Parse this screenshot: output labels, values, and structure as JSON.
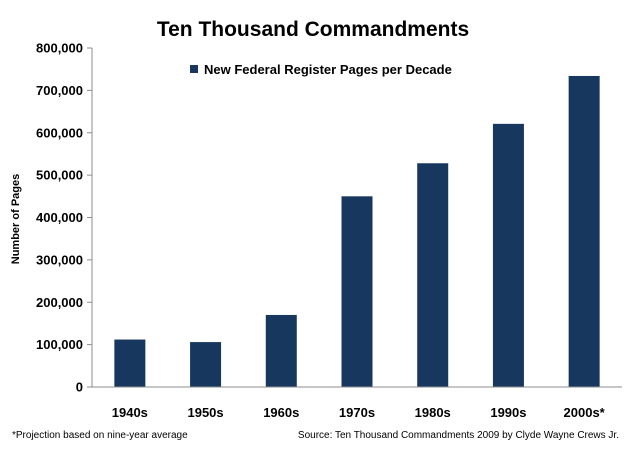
{
  "chart_data": {
    "type": "bar",
    "title": "Ten Thousand Commandments",
    "xlabel": "",
    "ylabel": "Number of Pages",
    "ylim": [
      0,
      800000
    ],
    "yticks": [
      0,
      100000,
      200000,
      300000,
      400000,
      500000,
      600000,
      700000,
      800000
    ],
    "ytick_labels": [
      "0",
      "100,000",
      "200,000",
      "300,000",
      "400,000",
      "500,000",
      "600,000",
      "700,000",
      "800,000"
    ],
    "categories": [
      "1940s",
      "1950s",
      "1960s",
      "1970s",
      "1980s",
      "1990s",
      "2000s*"
    ],
    "series": [
      {
        "name": "New Federal Register Pages per Decade",
        "color": "#17375E",
        "values": [
          112000,
          106000,
          170000,
          450000,
          528000,
          621000,
          734000
        ]
      }
    ],
    "legend_position": "top-center",
    "grid": false
  },
  "footnotes": {
    "left": "*Projection based on nine-year average",
    "right": "Source: Ten Thousand Commandments 2009 by Clyde Wayne Crews Jr."
  }
}
